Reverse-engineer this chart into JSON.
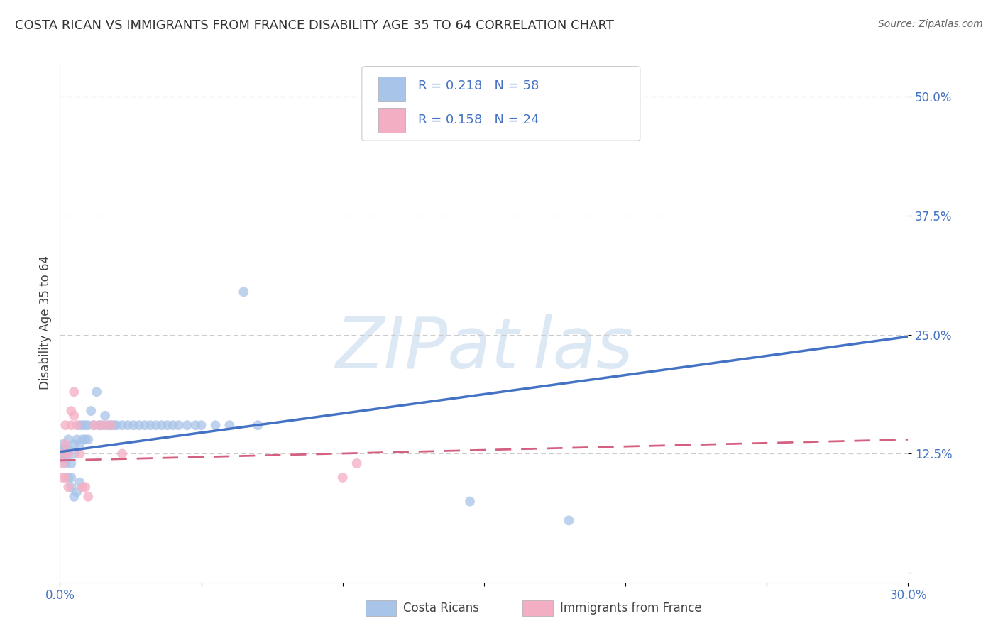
{
  "title": "COSTA RICAN VS IMMIGRANTS FROM FRANCE DISABILITY AGE 35 TO 64 CORRELATION CHART",
  "source": "Source: ZipAtlas.com",
  "ylabel_label": "Disability Age 35 to 64",
  "yticks": [
    0.0,
    0.125,
    0.25,
    0.375,
    0.5
  ],
  "ytick_labels": [
    "",
    "12.5%",
    "25.0%",
    "37.5%",
    "50.0%"
  ],
  "xlim": [
    0.0,
    0.3
  ],
  "ylim": [
    -0.01,
    0.535
  ],
  "legend1_R": "0.218",
  "legend1_N": "58",
  "legend2_R": "0.158",
  "legend2_N": "24",
  "color_blue": "#a8c4e8",
  "color_pink": "#f4aec4",
  "color_blue_line": "#4472c4",
  "color_pink_line": "#d46080",
  "color_text_blue": "#4472c4",
  "color_axis": "#cccccc",
  "color_grid": "#cccccc",
  "background_color": "#ffffff",
  "watermark_color": "#dde8f5",
  "costa_rican_x": [
    0.001,
    0.001,
    0.001,
    0.001,
    0.002,
    0.002,
    0.002,
    0.002,
    0.003,
    0.003,
    0.003,
    0.004,
    0.004,
    0.004,
    0.005,
    0.005,
    0.005,
    0.006,
    0.006,
    0.007,
    0.007,
    0.007,
    0.008,
    0.008,
    0.009,
    0.009,
    0.01,
    0.01,
    0.011,
    0.012,
    0.013,
    0.014,
    0.015,
    0.016,
    0.017,
    0.018,
    0.019,
    0.02,
    0.022,
    0.024,
    0.026,
    0.028,
    0.03,
    0.032,
    0.034,
    0.036,
    0.038,
    0.04,
    0.042,
    0.045,
    0.048,
    0.05,
    0.055,
    0.06,
    0.065,
    0.07,
    0.145,
    0.18
  ],
  "costa_rican_y": [
    0.135,
    0.13,
    0.125,
    0.12,
    0.13,
    0.125,
    0.12,
    0.115,
    0.14,
    0.13,
    0.1,
    0.115,
    0.1,
    0.09,
    0.135,
    0.125,
    0.08,
    0.14,
    0.085,
    0.155,
    0.135,
    0.095,
    0.155,
    0.14,
    0.155,
    0.14,
    0.155,
    0.14,
    0.17,
    0.155,
    0.19,
    0.155,
    0.155,
    0.165,
    0.155,
    0.155,
    0.155,
    0.155,
    0.155,
    0.155,
    0.155,
    0.155,
    0.155,
    0.155,
    0.155,
    0.155,
    0.155,
    0.155,
    0.155,
    0.155,
    0.155,
    0.155,
    0.155,
    0.155,
    0.295,
    0.155,
    0.075,
    0.055
  ],
  "france_x": [
    0.001,
    0.001,
    0.001,
    0.002,
    0.002,
    0.002,
    0.003,
    0.003,
    0.004,
    0.004,
    0.005,
    0.005,
    0.006,
    0.007,
    0.008,
    0.009,
    0.01,
    0.012,
    0.014,
    0.016,
    0.018,
    0.022,
    0.1,
    0.105
  ],
  "france_y": [
    0.125,
    0.115,
    0.1,
    0.155,
    0.135,
    0.1,
    0.125,
    0.09,
    0.17,
    0.155,
    0.19,
    0.165,
    0.155,
    0.125,
    0.09,
    0.09,
    0.08,
    0.155,
    0.155,
    0.155,
    0.155,
    0.125,
    0.1,
    0.115
  ],
  "marker_size": 100,
  "blue_line_y0": 0.127,
  "blue_line_y1": 0.248,
  "pink_line_y0": 0.118,
  "pink_line_y1": 0.14
}
